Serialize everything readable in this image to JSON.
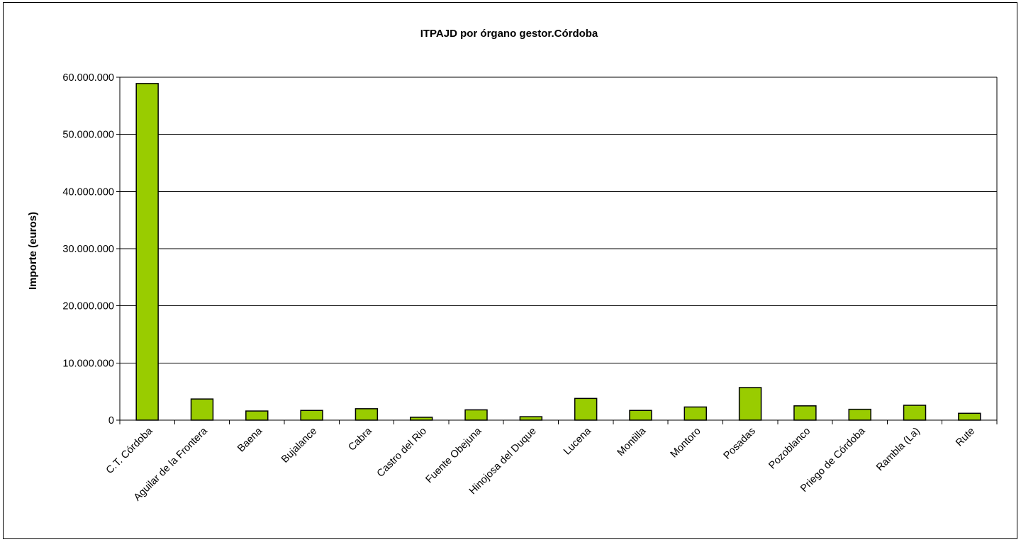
{
  "chart_data": {
    "type": "bar",
    "title": "ITPAJD por órgano gestor.Córdoba",
    "xlabel": "",
    "ylabel": "Importe (euros)",
    "ylim": [
      0,
      60000000
    ],
    "yticks": [
      0,
      10000000,
      20000000,
      30000000,
      40000000,
      50000000,
      60000000
    ],
    "ytick_labels": [
      "0",
      "10.000.000",
      "20.000.000",
      "30.000.000",
      "40.000.000",
      "50.000.000",
      "60.000.000"
    ],
    "grid": true,
    "legend": "none",
    "bar_color": "#99cc00",
    "categories": [
      "C.T. Córdoba",
      "Aguilar de la Frontera",
      "Baena",
      "Bujalance",
      "Cabra",
      "Castro del Rio",
      "Fuente Obejuna",
      "Hinojosa del Duque",
      "Lucena",
      "Montilla",
      "Montoro",
      "Posadas",
      "Pozoblanco",
      "Priego de Córdoba",
      "Rambla (La)",
      "Rute"
    ],
    "values": [
      58900000,
      3700000,
      1600000,
      1700000,
      2000000,
      500000,
      1800000,
      600000,
      3800000,
      1700000,
      2300000,
      5700000,
      2500000,
      1900000,
      2600000,
      1200000
    ]
  }
}
